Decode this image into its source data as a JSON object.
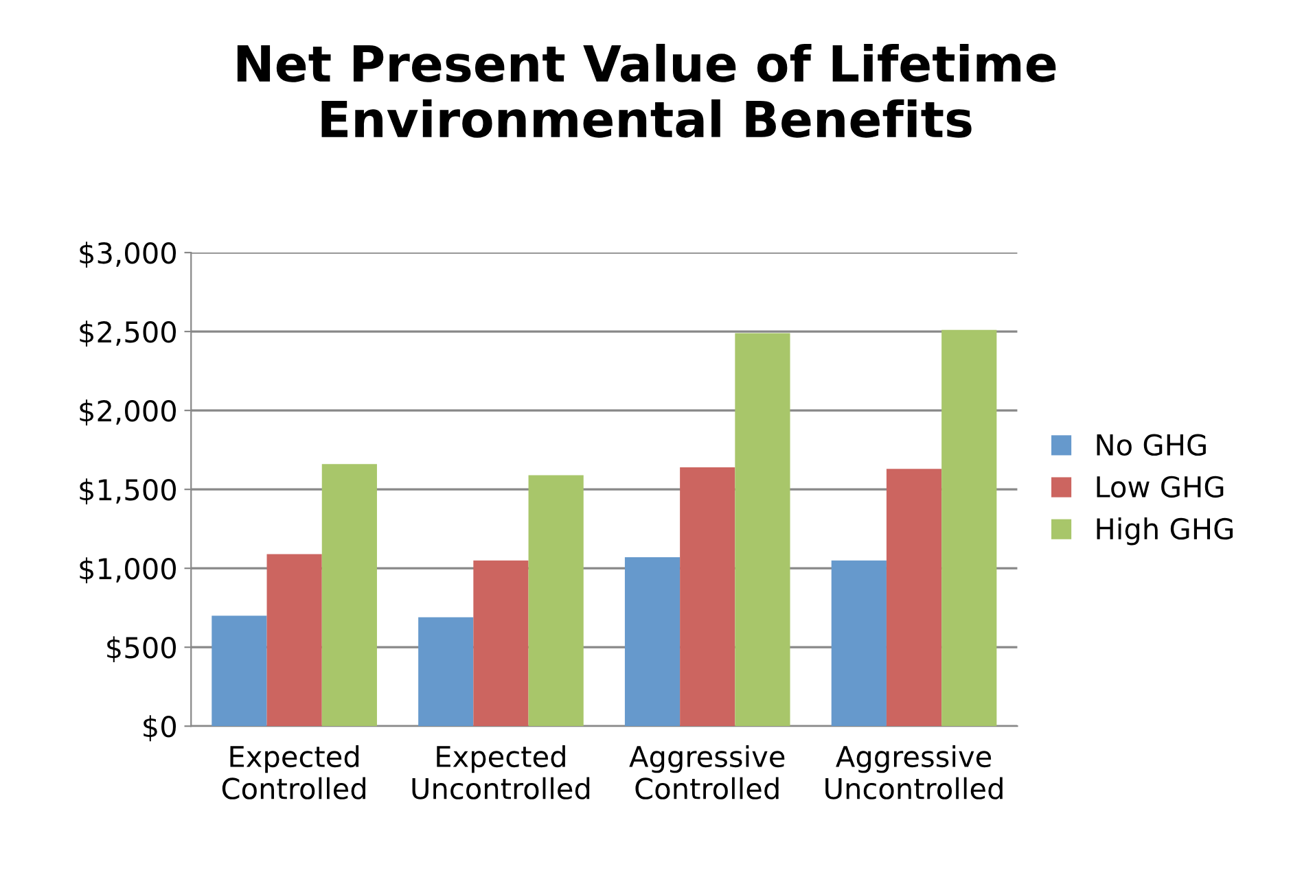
{
  "chart_data": {
    "type": "bar",
    "title": "Net Present Value of Lifetime Environmental Benefits",
    "categories": [
      "Expected\nControlled",
      "Expected\nUncontrolled",
      "Aggressive\nControlled",
      "Aggressive\nUncontrolled"
    ],
    "series": [
      {
        "name": "No GHG",
        "color": "#6699cc",
        "values": [
          700,
          690,
          1070,
          1050
        ]
      },
      {
        "name": "Low GHG",
        "color": "#cc6560",
        "values": [
          1090,
          1050,
          1640,
          1630
        ]
      },
      {
        "name": "High GHG",
        "color": "#a8c66a",
        "values": [
          1660,
          1590,
          2490,
          2510
        ]
      }
    ],
    "ylim": [
      0,
      3000
    ],
    "yticks": [
      {
        "value": 0,
        "label": "$0"
      },
      {
        "value": 500,
        "label": "$500"
      },
      {
        "value": 1000,
        "label": "$1,000"
      },
      {
        "value": 1500,
        "label": "$1,500"
      },
      {
        "value": 2000,
        "label": "$2,000"
      },
      {
        "value": 2500,
        "label": "$2,500"
      },
      {
        "value": 3000,
        "label": "$3,000"
      }
    ],
    "grid": "y",
    "legend": "right"
  }
}
